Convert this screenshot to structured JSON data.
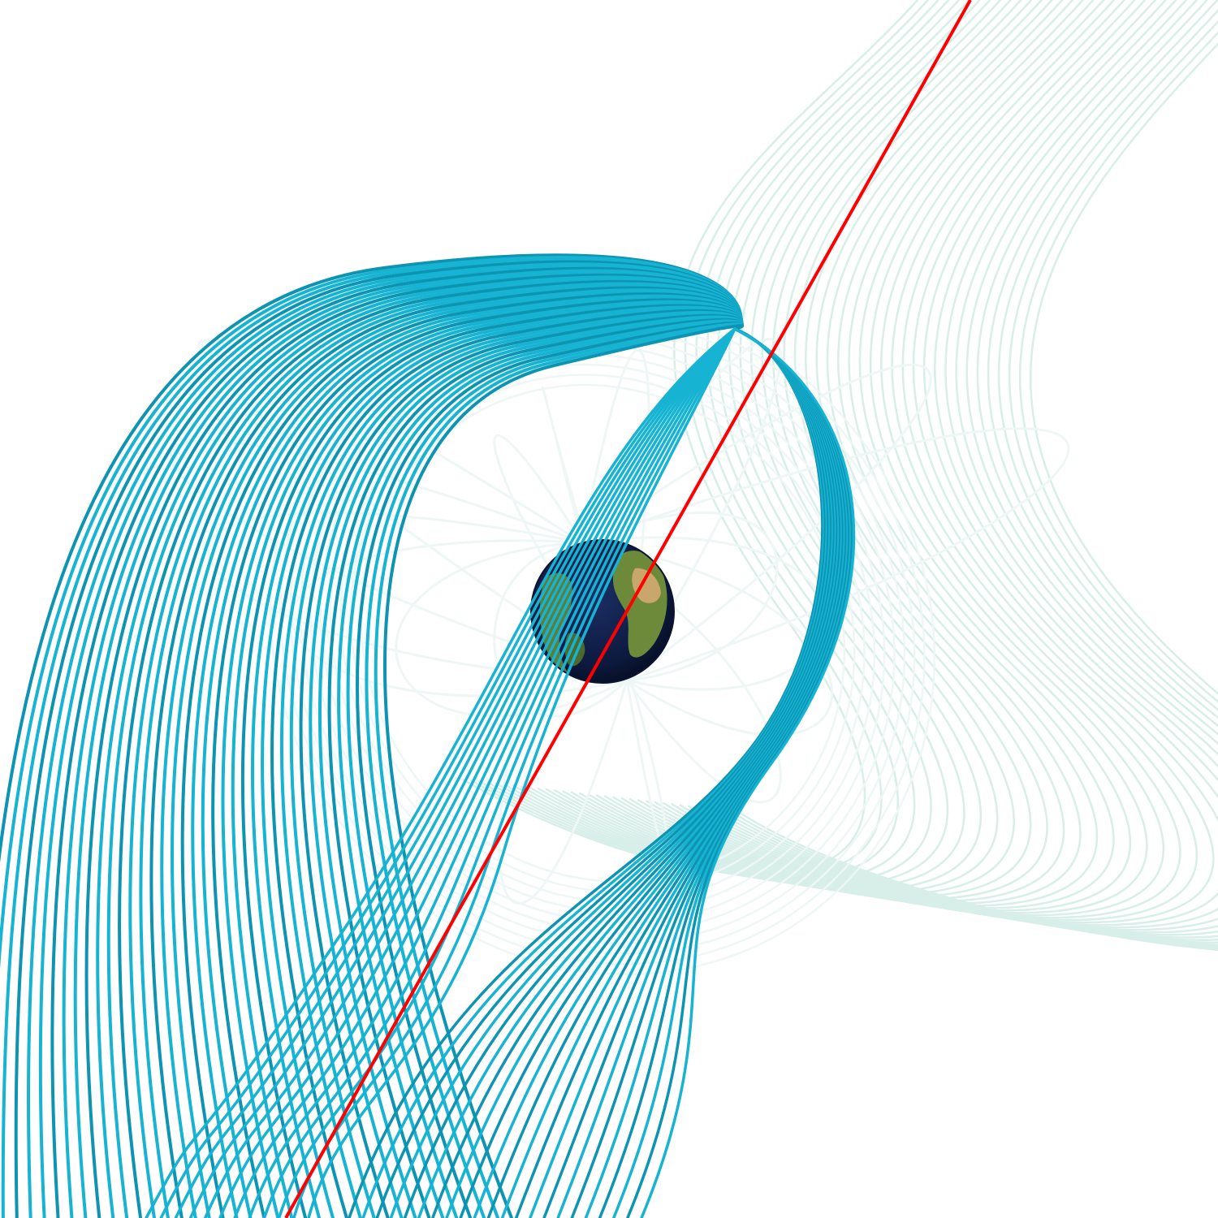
{
  "scene": {
    "background": "#ffffff",
    "colors": {
      "blue_field_lines": "#16b3d3",
      "blue_field_lines_shade": "#0e94b3",
      "pale_field_lines": "#d8eee8",
      "closed_loops": "#eef6f6",
      "axis_line": "#ff0000",
      "ocean": "#0d1a3f",
      "land": "#6d8a3a",
      "desert": "#c9a66b"
    },
    "objects": [
      "earth-globe",
      "dipole-axis-line",
      "closed-field-loops",
      "open-field-lines-blue",
      "open-field-lines-pale"
    ]
  }
}
